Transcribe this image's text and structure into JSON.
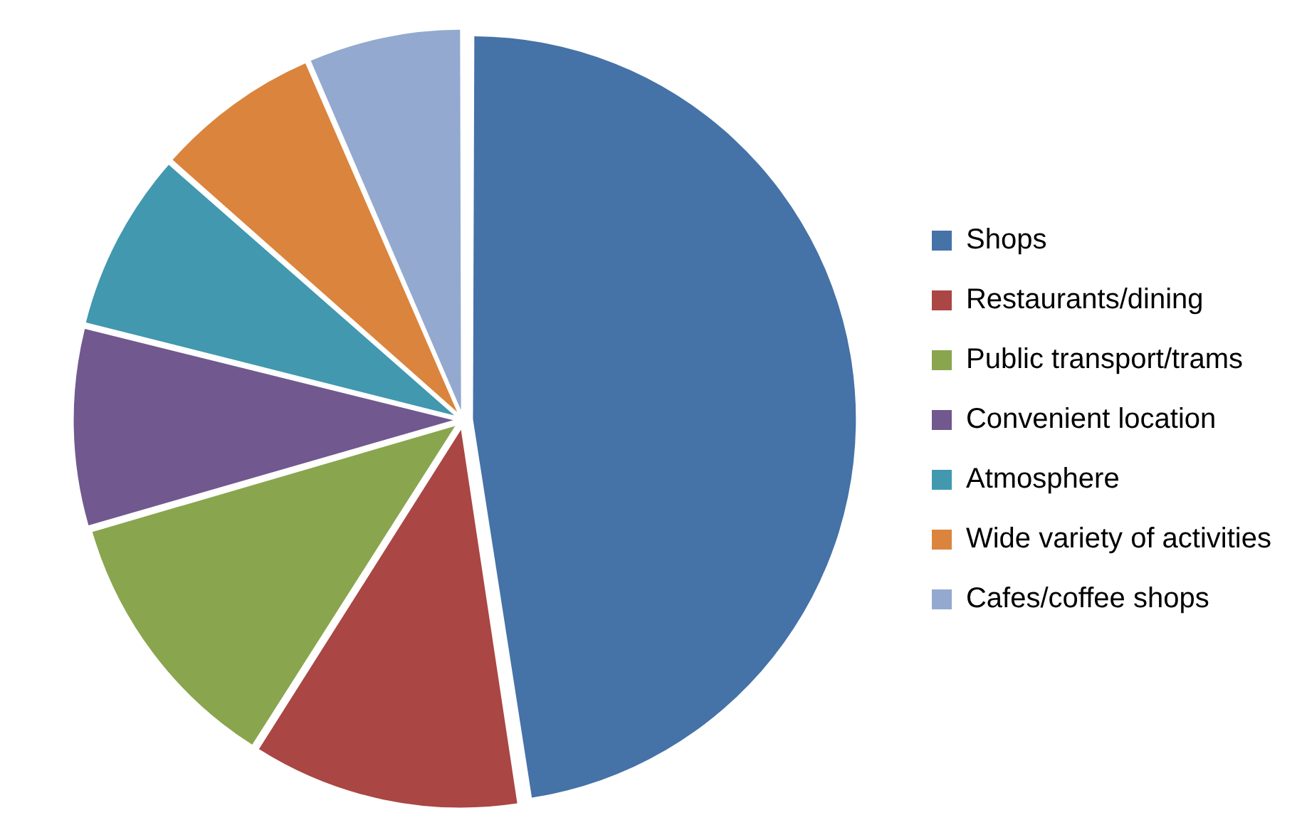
{
  "chart_data": {
    "type": "pie",
    "categories": [
      "Shops",
      "Restaurants/dining",
      "Public transport/trams",
      "Convenient location",
      "Atmosphere",
      "Wide variety of activities",
      "Cafes/coffee shops"
    ],
    "values": [
      47.6,
      11.4,
      11.5,
      8.4,
      7.6,
      7.0,
      6.5
    ],
    "colors": [
      "#4572a7",
      "#aa4643",
      "#89a54e",
      "#71588f",
      "#4198af",
      "#db843d",
      "#93a9cf"
    ],
    "legend": "right"
  }
}
